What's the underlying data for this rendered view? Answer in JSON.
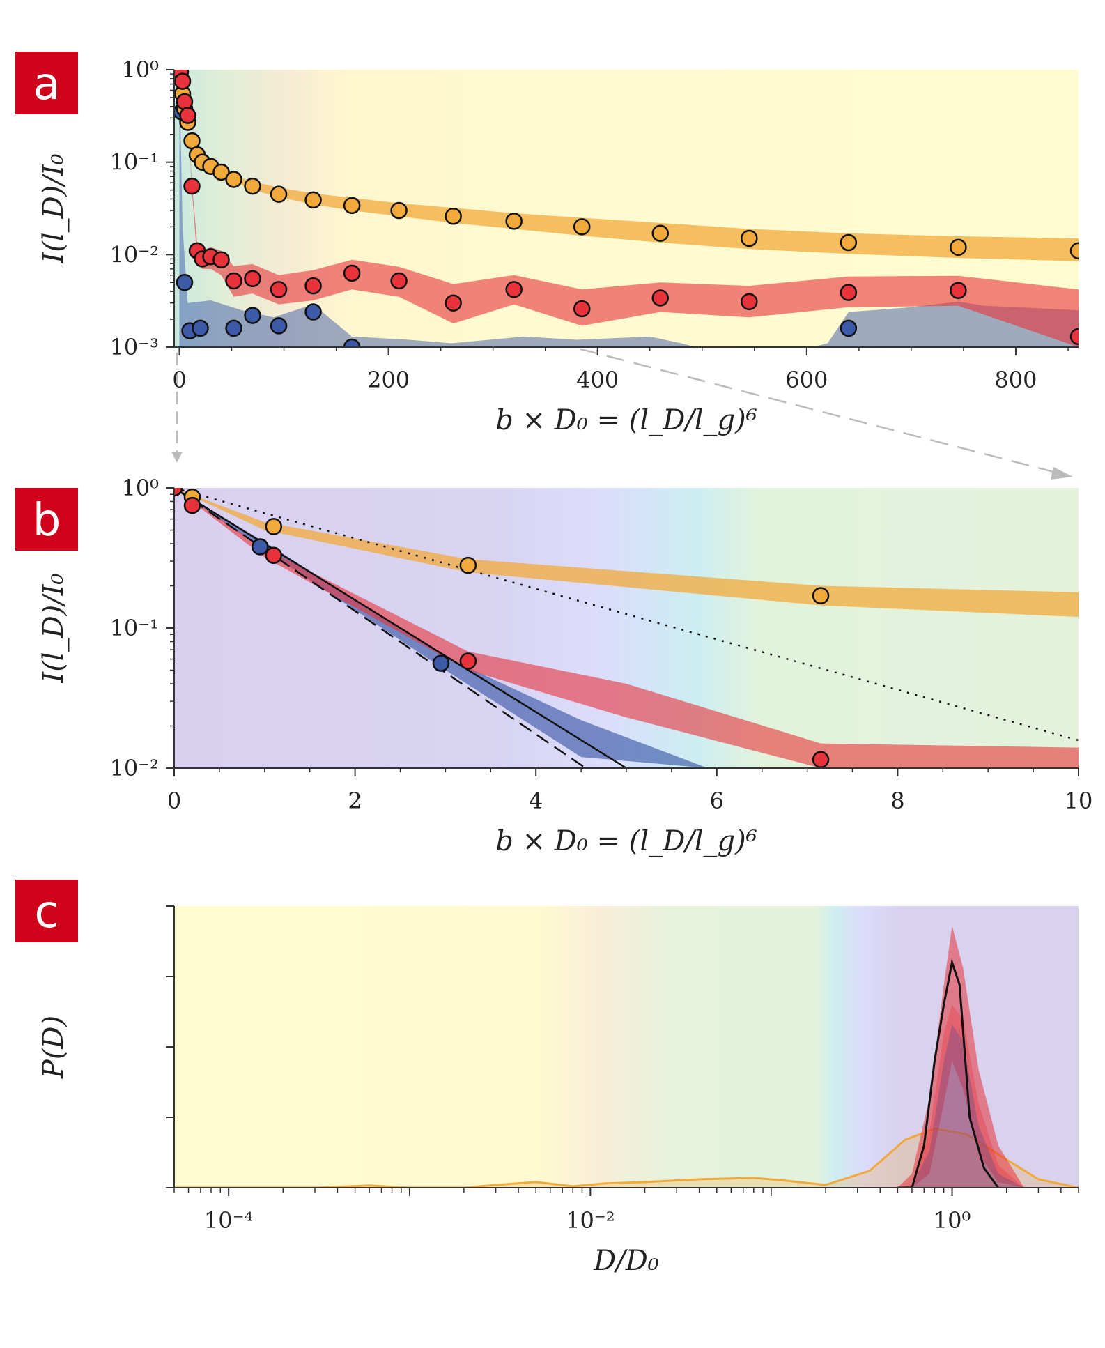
{
  "colors": {
    "orange": "#f2a93b",
    "red": "#e8333b",
    "blue": "#3d5aa8",
    "black": "#000000",
    "panel_label_bg": "#d0021b"
  },
  "chart_data": [
    {
      "panel": "a",
      "type": "scatter",
      "xlabel": "b  × D₀ = (l_D/l_g)⁶",
      "ylabel": "I(l_D)/I₀",
      "xscale": "linear",
      "yscale": "log",
      "xlim": [
        -5,
        860
      ],
      "ylim": [
        0.001,
        1
      ],
      "xticks": [
        0,
        200,
        400,
        600,
        800
      ],
      "xtick_labels": [
        "0",
        "200",
        "400",
        "600",
        "800"
      ],
      "yticks": [
        0.001,
        0.01,
        0.1,
        1
      ],
      "ytick_labels": [
        "10⁻³",
        "10⁻²",
        "10⁻¹",
        "10⁰"
      ],
      "series": [
        {
          "name": "orange",
          "color": "orange",
          "x": [
            0,
            1,
            3,
            5,
            8,
            12,
            17,
            22,
            30,
            40,
            52,
            70,
            95,
            128,
            165,
            210,
            262,
            320,
            385,
            460,
            545,
            640,
            745,
            860
          ],
          "y": [
            1,
            0.8,
            0.55,
            0.38,
            0.27,
            0.17,
            0.12,
            0.1,
            0.09,
            0.078,
            0.065,
            0.055,
            0.045,
            0.039,
            0.034,
            0.03,
            0.026,
            0.023,
            0.02,
            0.017,
            0.015,
            0.0135,
            0.012,
            0.011
          ],
          "band_lo": [
            1,
            0.8,
            0.55,
            0.38,
            0.27,
            0.17,
            0.12,
            0.1,
            0.09,
            0.076,
            0.062,
            0.05,
            0.042,
            0.035,
            0.03,
            0.026,
            0.022,
            0.019,
            0.016,
            0.0135,
            0.0115,
            0.0102,
            0.0092,
            0.0085
          ],
          "band_hi": [
            1,
            0.8,
            0.55,
            0.38,
            0.27,
            0.17,
            0.12,
            0.1,
            0.09,
            0.083,
            0.071,
            0.062,
            0.053,
            0.046,
            0.041,
            0.036,
            0.032,
            0.028,
            0.025,
            0.022,
            0.019,
            0.017,
            0.0158,
            0.015
          ]
        },
        {
          "name": "red",
          "color": "red",
          "x": [
            0,
            1,
            3,
            5,
            8,
            12,
            17,
            22,
            30,
            40,
            52,
            70,
            95,
            128,
            165,
            210,
            262,
            320,
            385,
            460,
            545,
            640,
            745,
            860
          ],
          "y": [
            1,
            0.95,
            0.75,
            0.45,
            0.32,
            0.055,
            0.011,
            0.009,
            0.0095,
            0.0088,
            0.0052,
            0.0055,
            0.0042,
            0.0046,
            0.0063,
            0.0052,
            0.003,
            0.0042,
            0.0026,
            0.0034,
            0.0031,
            0.0039,
            0.0041,
            0.0013
          ],
          "band_lo": [
            1,
            0.95,
            0.75,
            0.45,
            0.32,
            0.05,
            0.009,
            0.007,
            0.007,
            0.006,
            0.0035,
            0.0038,
            0.0029,
            0.0032,
            0.0042,
            0.0035,
            0.0018,
            0.0029,
            0.0017,
            0.0024,
            0.0021,
            0.0027,
            0.0028,
            0.001
          ],
          "band_hi": [
            1,
            0.95,
            0.75,
            0.45,
            0.32,
            0.06,
            0.013,
            0.011,
            0.012,
            0.011,
            0.0075,
            0.0079,
            0.006,
            0.0068,
            0.0088,
            0.0074,
            0.0048,
            0.006,
            0.0042,
            0.005,
            0.0046,
            0.0058,
            0.0059,
            0.0042
          ]
        },
        {
          "name": "blue",
          "color": "blue",
          "x": [
            0,
            2,
            5,
            10,
            20,
            52,
            70,
            95,
            128,
            165,
            640
          ],
          "y": [
            1,
            0.35,
            0.005,
            0.0015,
            0.0016,
            0.0016,
            0.0022,
            0.0017,
            0.0024,
            0.001,
            0.0016
          ]
        }
      ]
    },
    {
      "panel": "b",
      "type": "scatter",
      "xlabel": "b  × D₀ = (l_D/l_g)⁶",
      "ylabel": "I(l_D)/I₀",
      "xscale": "linear",
      "yscale": "log",
      "xlim": [
        0,
        10
      ],
      "ylim": [
        0.01,
        1
      ],
      "xticks": [
        0,
        2,
        4,
        6,
        8,
        10
      ],
      "xtick_labels": [
        "0",
        "2",
        "4",
        "6",
        "8",
        "10"
      ],
      "yticks": [
        0.01,
        0.1,
        1
      ],
      "ytick_labels": [
        "10⁻²",
        "10⁻¹",
        "10⁰"
      ],
      "series": [
        {
          "name": "orange",
          "color": "orange",
          "x": [
            0,
            0.2,
            1.1,
            3.25,
            7.15
          ],
          "y": [
            1,
            0.86,
            0.53,
            0.28,
            0.17
          ],
          "band_x": [
            0,
            1,
            3.25,
            7.15,
            10
          ],
          "band_lo": [
            1,
            0.5,
            0.25,
            0.145,
            0.12
          ],
          "band_hi": [
            1,
            0.57,
            0.31,
            0.2,
            0.18
          ]
        },
        {
          "name": "red",
          "color": "red",
          "x": [
            0,
            0.2,
            1.1,
            3.25,
            7.15
          ],
          "y": [
            1,
            0.75,
            0.33,
            0.058,
            0.0115
          ],
          "band_x": [
            0,
            1,
            3.25,
            5,
            7.15,
            10
          ],
          "band_lo": [
            1,
            0.32,
            0.05,
            0.023,
            0.01,
            0.01
          ],
          "band_hi": [
            1,
            0.37,
            0.068,
            0.04,
            0.015,
            0.014
          ]
        },
        {
          "name": "blue",
          "color": "blue",
          "x": [
            0,
            0.95,
            2.95
          ],
          "y": [
            1,
            0.38,
            0.056
          ],
          "band_x": [
            0,
            1,
            3,
            4.5,
            5.9
          ],
          "band_lo": [
            1,
            0.36,
            0.05,
            0.012,
            0.01
          ],
          "band_hi": [
            1,
            0.41,
            0.062,
            0.022,
            0.01
          ]
        }
      ],
      "lines": [
        {
          "name": "solid",
          "style": "solid",
          "x": [
            0,
            5
          ],
          "y": [
            1,
            0.01
          ]
        },
        {
          "name": "dashed",
          "style": "dashed",
          "x": [
            0,
            4.55
          ],
          "y": [
            1,
            0.01
          ]
        },
        {
          "name": "dotted",
          "style": "dotted",
          "x": [
            0,
            10
          ],
          "y": [
            1,
            0.0158
          ]
        }
      ]
    },
    {
      "panel": "c",
      "type": "area",
      "xlabel": "D/D₀",
      "ylabel": "P(D)",
      "xscale": "log",
      "yscale": "linear",
      "xlim": [
        5e-05,
        5
      ],
      "ylim": [
        0,
        1
      ],
      "xticks": [
        0.0001,
        0.01,
        1
      ],
      "xtick_labels": [
        "10⁻⁴",
        "10⁻²",
        "10⁰"
      ],
      "yticks": [
        0,
        0.25,
        0.5,
        0.75,
        1
      ],
      "ytick_labels": [
        "",
        "",
        "",
        "",
        ""
      ],
      "series": [
        {
          "name": "orange",
          "color": "orange",
          "x": [
            5e-05,
            0.0003,
            0.0006,
            0.001,
            0.002,
            0.003,
            0.005,
            0.008,
            0.012,
            0.02,
            0.04,
            0.08,
            0.12,
            0.2,
            0.35,
            0.55,
            0.8,
            1.2,
            2,
            3,
            5
          ],
          "y": [
            0,
            0,
            0.008,
            0,
            0,
            0.01,
            0.02,
            0.005,
            0.015,
            0.02,
            0.03,
            0.035,
            0.025,
            0.01,
            0.06,
            0.17,
            0.21,
            0.19,
            0.1,
            0.03,
            0
          ]
        },
        {
          "name": "blue",
          "color": "blue",
          "x": [
            0.5,
            0.6,
            0.75,
            0.9,
            1,
            1.15,
            1.4,
            1.8,
            2.5
          ],
          "y": [
            0,
            0.01,
            0.13,
            0.45,
            0.58,
            0.52,
            0.22,
            0.05,
            0
          ]
        },
        {
          "name": "red",
          "color": "red",
          "x": [
            0.5,
            0.6,
            0.75,
            0.9,
            1,
            1.15,
            1.4,
            1.8,
            2.5
          ],
          "y": [
            0,
            0.01,
            0.2,
            0.55,
            0.65,
            0.6,
            0.3,
            0.08,
            0
          ],
          "band_lo": [
            0,
            0,
            0.05,
            0.3,
            0.45,
            0.35,
            0.12,
            0.02,
            0
          ],
          "band_hi": [
            0,
            0.05,
            0.32,
            0.72,
            0.93,
            0.78,
            0.42,
            0.15,
            0
          ]
        },
        {
          "name": "black",
          "color": "black",
          "x": [
            0.5,
            0.6,
            0.7,
            0.8,
            0.9,
            1,
            1.1,
            1.25,
            1.5,
            1.8
          ],
          "y": [
            0,
            0,
            0.15,
            0.45,
            0.65,
            0.8,
            0.72,
            0.25,
            0.07,
            0
          ]
        }
      ]
    }
  ],
  "panels": {
    "a": "a",
    "b": "b",
    "c": "c"
  }
}
